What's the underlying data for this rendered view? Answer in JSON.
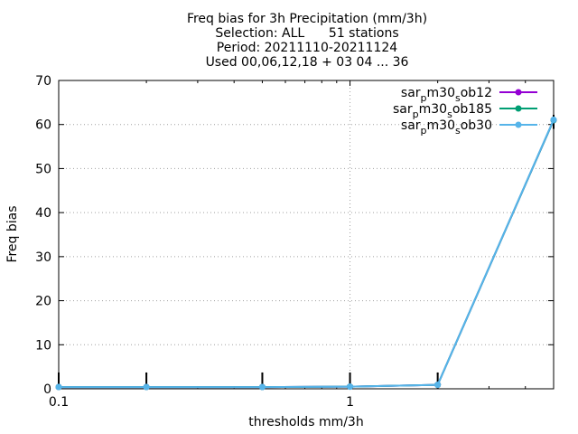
{
  "chart_data": {
    "type": "line",
    "title_lines": [
      "Freq bias  for 3h Precipitation (mm/3h)",
      "Selection: ALL      51 stations",
      "Period: 20211110-20211124",
      "Used 00,06,12,18 + 03 04 ... 36"
    ],
    "xlabel": "thresholds mm/3h",
    "ylabel": "Freq bias",
    "x_scale": "log",
    "xlim": [
      0.1,
      5
    ],
    "ylim": [
      0,
      70
    ],
    "x_ticks": [
      0.1,
      1
    ],
    "y_ticks": [
      0,
      10,
      20,
      30,
      40,
      50,
      60,
      70
    ],
    "grid": true,
    "legend_position": "top-right",
    "x": [
      0.1,
      0.2,
      0.5,
      1,
      2,
      5
    ],
    "series": [
      {
        "name_parts": [
          "sar",
          "p",
          "m30",
          "s",
          "ob12"
        ],
        "color": "#9400d3",
        "values": [
          0.4,
          0.4,
          0.4,
          0.5,
          0.9,
          61
        ]
      },
      {
        "name_parts": [
          "sar",
          "p",
          "m30",
          "s",
          "ob185"
        ],
        "color": "#009e73",
        "values": [
          0.4,
          0.4,
          0.4,
          0.5,
          0.9,
          61
        ]
      },
      {
        "name_parts": [
          "sar",
          "p",
          "m30",
          "s",
          "ob30"
        ],
        "color": "#56b4e9",
        "values": [
          0.4,
          0.4,
          0.4,
          0.5,
          0.9,
          61.1
        ]
      }
    ],
    "error_bars": {
      "x": [
        0.1,
        0.2,
        0.5,
        1,
        2,
        5
      ],
      "low": [
        0,
        0,
        0,
        0,
        0,
        59
      ],
      "high": [
        3.5,
        3.5,
        3.5,
        3.5,
        3.5,
        62
      ],
      "color": "#000000"
    }
  }
}
